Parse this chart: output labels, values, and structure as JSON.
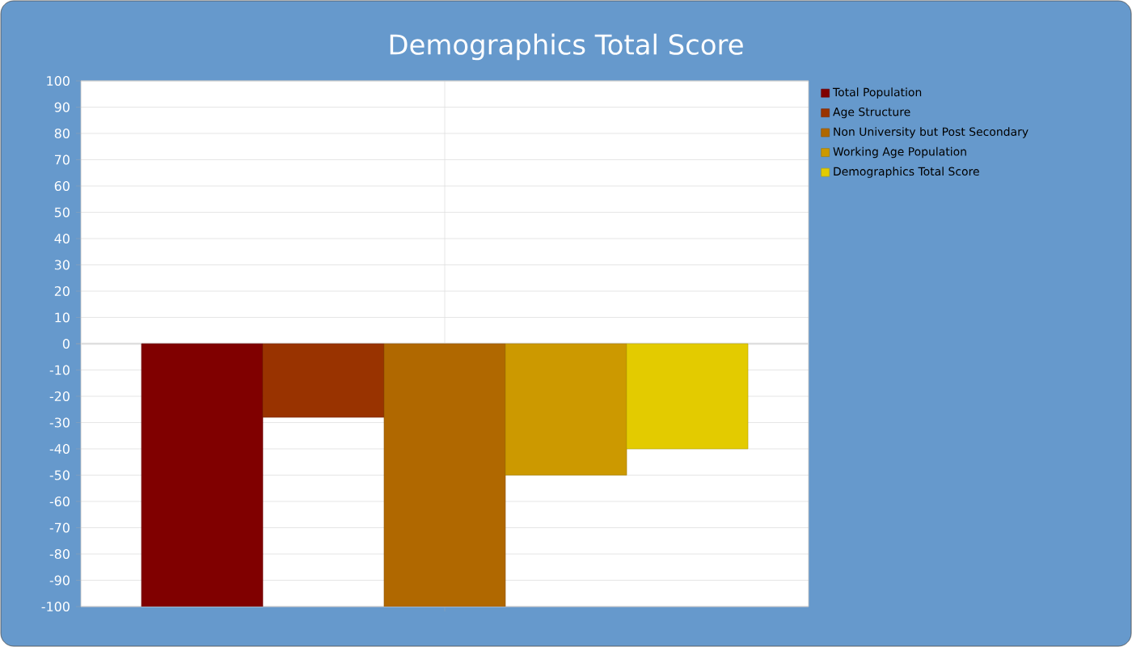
{
  "chart_data": {
    "type": "bar",
    "title": "Demographics Total Score",
    "categories": [
      null
    ],
    "series": [
      {
        "name": "Total Population",
        "color": "#800000",
        "values": [
          -100
        ]
      },
      {
        "name": "Age Structure",
        "color": "#993300",
        "values": [
          -28
        ]
      },
      {
        "name": "Non University but Post Secondary",
        "color": "#b06800",
        "values": [
          -100
        ]
      },
      {
        "name": "Working Age Population",
        "color": "#cc9900",
        "values": [
          -50
        ]
      },
      {
        "name": "Demographics Total Score",
        "color": "#e3cb00",
        "values": [
          -40
        ]
      }
    ],
    "ylim": [
      -100,
      100
    ],
    "yticks": [
      -100,
      -90,
      -80,
      -70,
      -60,
      -50,
      -40,
      -30,
      -20,
      -10,
      0,
      10,
      20,
      30,
      40,
      50,
      60,
      70,
      80,
      90,
      100
    ],
    "grid": true,
    "legend": "right"
  }
}
